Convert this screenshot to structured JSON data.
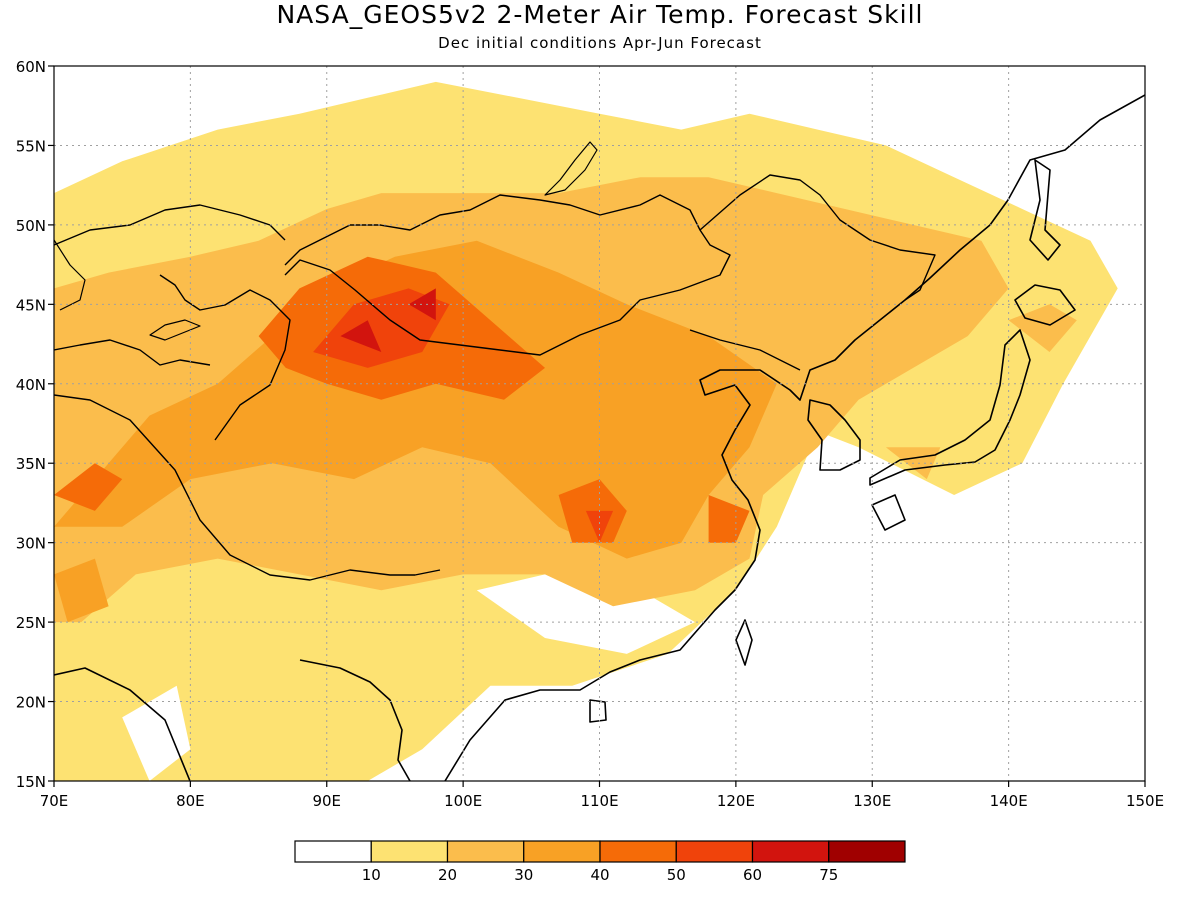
{
  "title": "NASA_GEOS5v2 2-Meter Air Temp. Forecast Skill",
  "subtitle": "Dec initial conditions  Apr-Jun Forecast",
  "colors": {
    "c0": "#ffffff",
    "c1": "#fde272",
    "c2": "#fbbd4c",
    "c3": "#f8a125",
    "c4": "#f56b08",
    "c5": "#f0430b",
    "c6": "#d2140e",
    "c7": "#a00000"
  },
  "chart_data": {
    "type": "heatmap",
    "xlim": [
      70,
      150
    ],
    "ylim": [
      15,
      60
    ],
    "x_ticks": [
      70,
      80,
      90,
      100,
      110,
      120,
      130,
      140,
      150
    ],
    "y_ticks": [
      15,
      20,
      25,
      30,
      35,
      40,
      45,
      50,
      55,
      60
    ],
    "x_tick_labels": [
      "70E",
      "80E",
      "90E",
      "100E",
      "110E",
      "120E",
      "130E",
      "140E",
      "150E"
    ],
    "y_tick_labels": [
      "15N",
      "20N",
      "25N",
      "30N",
      "35N",
      "40N",
      "45N",
      "50N",
      "55N",
      "60N"
    ],
    "grid": true,
    "colorbar": {
      "levels": [
        10,
        20,
        30,
        40,
        50,
        60,
        75
      ],
      "labels": [
        "10",
        "20",
        "30",
        "40",
        "50",
        "60",
        "75"
      ],
      "colors": [
        "#ffffff",
        "#fde272",
        "#fbbd4c",
        "#f8a125",
        "#f56b08",
        "#f0430b",
        "#d2140e",
        "#a00000"
      ]
    },
    "regions": [
      {
        "level": 1,
        "points": [
          [
            70,
            15
          ],
          [
            70,
            52
          ],
          [
            75,
            54
          ],
          [
            82,
            56
          ],
          [
            88,
            57
          ],
          [
            93,
            58
          ],
          [
            98,
            59
          ],
          [
            104,
            58
          ],
          [
            110,
            57
          ],
          [
            116,
            56
          ],
          [
            121,
            57
          ],
          [
            126,
            56
          ],
          [
            131,
            55
          ],
          [
            136,
            53
          ],
          [
            141,
            51
          ],
          [
            146,
            49
          ],
          [
            148,
            46
          ],
          [
            144,
            40
          ],
          [
            141,
            35
          ],
          [
            136,
            33
          ],
          [
            129,
            36
          ],
          [
            126,
            37
          ],
          [
            123,
            31
          ],
          [
            120,
            27
          ],
          [
            115,
            23
          ],
          [
            108,
            21
          ],
          [
            102,
            21
          ],
          [
            97,
            17
          ],
          [
            93,
            15
          ]
        ]
      },
      {
        "level": 0,
        "points": [
          [
            101,
            27
          ],
          [
            106,
            24
          ],
          [
            112,
            23
          ],
          [
            117,
            25
          ],
          [
            113,
            27
          ],
          [
            106,
            28
          ]
        ]
      },
      {
        "level": 0,
        "points": [
          [
            75,
            19
          ],
          [
            79,
            21
          ],
          [
            80,
            17
          ],
          [
            77,
            15
          ]
        ]
      },
      {
        "level": 2,
        "points": [
          [
            70,
            25
          ],
          [
            70,
            46
          ],
          [
            74,
            47
          ],
          [
            80,
            48
          ],
          [
            85,
            49
          ],
          [
            90,
            51
          ],
          [
            94,
            52
          ],
          [
            100,
            52
          ],
          [
            107,
            52
          ],
          [
            113,
            53
          ],
          [
            118,
            53
          ],
          [
            123,
            52
          ],
          [
            128,
            51
          ],
          [
            133,
            50
          ],
          [
            138,
            49
          ],
          [
            140,
            46
          ],
          [
            137,
            43
          ],
          [
            133,
            41
          ],
          [
            129,
            39
          ],
          [
            126,
            36
          ],
          [
            122,
            33
          ],
          [
            121,
            29
          ],
          [
            117,
            27
          ],
          [
            111,
            26
          ],
          [
            106,
            28
          ],
          [
            100,
            28
          ],
          [
            94,
            27
          ],
          [
            88,
            28
          ],
          [
            82,
            29
          ],
          [
            76,
            28
          ],
          [
            72,
            25
          ]
        ]
      },
      {
        "level": 2,
        "points": [
          [
            140,
            44
          ],
          [
            143,
            45
          ],
          [
            145,
            44
          ],
          [
            143,
            42
          ]
        ]
      },
      {
        "level": 2,
        "points": [
          [
            131,
            36
          ],
          [
            135,
            36
          ],
          [
            134,
            34
          ]
        ]
      },
      {
        "level": 3,
        "points": [
          [
            70,
            31
          ],
          [
            73,
            34
          ],
          [
            77,
            38
          ],
          [
            82,
            40
          ],
          [
            86,
            43
          ],
          [
            90,
            46
          ],
          [
            95,
            48
          ],
          [
            101,
            49
          ],
          [
            107,
            47
          ],
          [
            112,
            45
          ],
          [
            118,
            43
          ],
          [
            123,
            40
          ],
          [
            121,
            36
          ],
          [
            118,
            33
          ],
          [
            116,
            30
          ],
          [
            112,
            29
          ],
          [
            107,
            31
          ],
          [
            102,
            35
          ],
          [
            97,
            36
          ],
          [
            92,
            34
          ],
          [
            86,
            35
          ],
          [
            80,
            34
          ],
          [
            75,
            31
          ]
        ]
      },
      {
        "level": 3,
        "points": [
          [
            70,
            28
          ],
          [
            73,
            29
          ],
          [
            74,
            26
          ],
          [
            71,
            25
          ]
        ]
      },
      {
        "level": 4,
        "points": [
          [
            85,
            43
          ],
          [
            88,
            46
          ],
          [
            93,
            48
          ],
          [
            98,
            47
          ],
          [
            102,
            44
          ],
          [
            106,
            41
          ],
          [
            103,
            39
          ],
          [
            98,
            40
          ],
          [
            94,
            39
          ],
          [
            90,
            40
          ],
          [
            87,
            41
          ]
        ]
      },
      {
        "level": 4,
        "points": [
          [
            107,
            33
          ],
          [
            110,
            34
          ],
          [
            112,
            32
          ],
          [
            111,
            30
          ],
          [
            108,
            30
          ]
        ]
      },
      {
        "level": 4,
        "points": [
          [
            118,
            33
          ],
          [
            121,
            32
          ],
          [
            120,
            30
          ],
          [
            118,
            30
          ]
        ]
      },
      {
        "level": 4,
        "points": [
          [
            70,
            33
          ],
          [
            73,
            35
          ],
          [
            75,
            34
          ],
          [
            73,
            32
          ]
        ]
      },
      {
        "level": 5,
        "points": [
          [
            89,
            42
          ],
          [
            92,
            45
          ],
          [
            96,
            46
          ],
          [
            99,
            45
          ],
          [
            97,
            42
          ],
          [
            93,
            41
          ]
        ]
      },
      {
        "level": 5,
        "points": [
          [
            109,
            32
          ],
          [
            111,
            32
          ],
          [
            110,
            30
          ]
        ]
      },
      {
        "level": 6,
        "points": [
          [
            91,
            43
          ],
          [
            93,
            44
          ],
          [
            94,
            42
          ]
        ]
      },
      {
        "level": 6,
        "points": [
          [
            96,
            45
          ],
          [
            98,
            46
          ],
          [
            98,
            44
          ]
        ]
      }
    ]
  }
}
